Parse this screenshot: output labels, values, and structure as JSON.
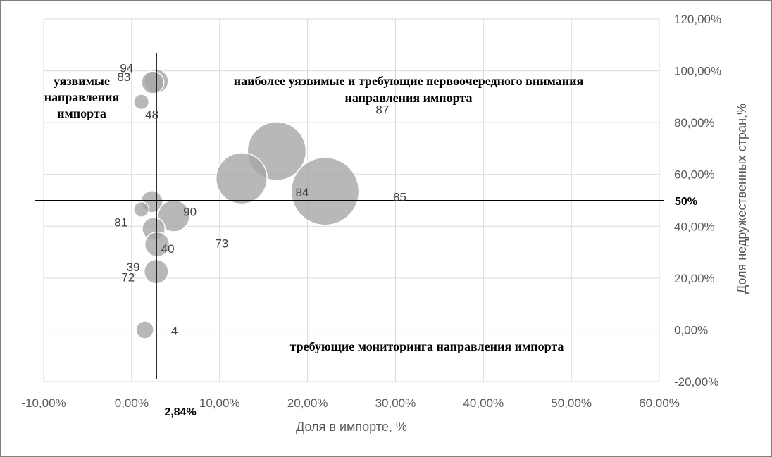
{
  "chart_data": {
    "type": "bubble",
    "xlabel": "Доля в импорте, %",
    "ylabel": "Доля недружественных стран,%",
    "xlim": [
      -0.1,
      0.6
    ],
    "ylim": [
      -0.2,
      1.2
    ],
    "x_ticks": [
      -0.1,
      0.0,
      0.1,
      0.2,
      0.3,
      0.4,
      0.5,
      0.6
    ],
    "x_tick_labels": [
      "-10,00%",
      "0,00%",
      "10,00%",
      "20,00%",
      "30,00%",
      "40,00%",
      "50,00%",
      "60,00%"
    ],
    "y_ticks": [
      -0.2,
      0.0,
      0.2,
      0.4,
      0.6,
      0.8,
      1.0,
      1.2
    ],
    "y_tick_labels": [
      "-20,00%",
      "0,00%",
      "20,00%",
      "40,00%",
      "60,00%",
      "80,00%",
      "100,00%",
      "120,00%"
    ],
    "y_axis_side": "right",
    "grid": true,
    "bubble_color": "#a6a6a6",
    "points": [
      {
        "label": "94",
        "x": 0.028,
        "y": 0.96,
        "size": 0.028
      },
      {
        "label": "83",
        "x": 0.024,
        "y": 0.955,
        "size": 0.024
      },
      {
        "label": "48",
        "x": 0.011,
        "y": 0.88,
        "size": 0.011
      },
      {
        "label": "87",
        "x": 0.165,
        "y": 0.69,
        "size": 0.165
      },
      {
        "label": "84",
        "x": 0.125,
        "y": 0.585,
        "size": 0.125
      },
      {
        "label": "85",
        "x": 0.22,
        "y": 0.535,
        "size": 0.22
      },
      {
        "label": "90",
        "x": 0.023,
        "y": 0.495,
        "size": 0.023
      },
      {
        "label": "73",
        "x": 0.048,
        "y": 0.44,
        "size": 0.048
      },
      {
        "label": "81",
        "x": 0.011,
        "y": 0.465,
        "size": 0.011
      },
      {
        "label": "40",
        "x": 0.025,
        "y": 0.39,
        "size": 0.025
      },
      {
        "label": "39",
        "x": 0.029,
        "y": 0.33,
        "size": 0.029
      },
      {
        "label": "72",
        "x": 0.028,
        "y": 0.225,
        "size": 0.028
      },
      {
        "label": "4",
        "x": 0.015,
        "y": 0.0,
        "size": 0.015
      }
    ],
    "thresholds": {
      "x": 0.0284,
      "x_label": "2,84%",
      "y": 0.5,
      "y_label": "50%"
    },
    "annotations": [
      {
        "id": "q-top-left",
        "lines": [
          "уязвимые",
          "направления",
          "импорта"
        ]
      },
      {
        "id": "q-top-right",
        "lines": [
          "наиболее уязвимые и требующие первоочередного внимания",
          "направления импорта"
        ]
      },
      {
        "id": "q-bottom",
        "lines": [
          "требующие мониторинга направления импорта"
        ]
      }
    ]
  }
}
